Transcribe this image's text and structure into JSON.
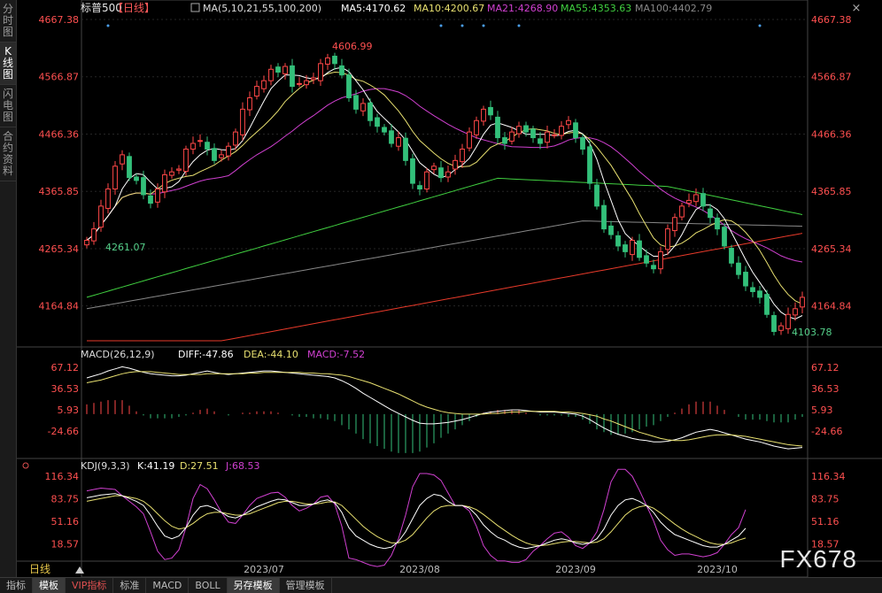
{
  "sidebar": {
    "tabs": [
      {
        "label": "分时图",
        "active": false
      },
      {
        "label": "K线图",
        "active": true
      },
      {
        "label": "闪电图",
        "active": false
      },
      {
        "label": "合约资料",
        "active": false
      }
    ]
  },
  "bottom_tabs": [
    {
      "label": "指标",
      "active": false,
      "red": false
    },
    {
      "label": "模板",
      "active": true,
      "red": false
    },
    {
      "label": "VIP指标",
      "active": false,
      "red": true
    },
    {
      "label": "标准",
      "active": false,
      "red": false
    },
    {
      "label": "MACD",
      "active": false,
      "red": false
    },
    {
      "label": "BOLL",
      "active": false,
      "red": false
    },
    {
      "label": "另存模板",
      "active": true,
      "red": false
    },
    {
      "label": "管理模板",
      "active": false,
      "red": false
    }
  ],
  "watermark": "FX678",
  "close_icon": "close-icon",
  "chart_data": {
    "type": "candlestick",
    "title": "标普500",
    "period_label": "【日线】",
    "period_selector": "日线",
    "legend": [
      {
        "text": "MA(5,10,21,55,100,200)",
        "color": "#dddddd"
      },
      {
        "text": "MA5:4170.62",
        "color": "#ffffff"
      },
      {
        "text": "MA10:4200.67",
        "color": "#e8e070"
      },
      {
        "text": "MA21:4268.90",
        "color": "#d040d0"
      },
      {
        "text": "MA55:4353.63",
        "color": "#40d040"
      },
      {
        "text": "MA100:4402.79",
        "color": "#888888"
      }
    ],
    "price_axis": {
      "ylim": [
        4103.78,
        4667.38
      ],
      "ticks": [
        4667.38,
        4566.87,
        4466.36,
        4365.85,
        4265.34,
        4164.84
      ]
    },
    "x_ticks": [
      {
        "label": "2023/07",
        "i": 25
      },
      {
        "label": "2023/08",
        "i": 47
      },
      {
        "label": "2023/09",
        "i": 69
      },
      {
        "label": "2023/10",
        "i": 89
      }
    ],
    "annotations": {
      "high": "4606.99",
      "low": "4103.78",
      "left_label": "4261.07"
    },
    "series_colors": {
      "up": "#ff4848",
      "down": "#33c07a",
      "ma5": "#ffffff",
      "ma10": "#e8e070",
      "ma21": "#d040d0",
      "ma55": "#40d040",
      "ma100": "#888888",
      "ma200": "#e83a2a"
    },
    "closes": [
      4280,
      4300,
      4340,
      4370,
      4410,
      4430,
      4390,
      4385,
      4360,
      4345,
      4370,
      4395,
      4400,
      4405,
      4440,
      4450,
      4455,
      4440,
      4420,
      4430,
      4445,
      4470,
      4510,
      4530,
      4550,
      4560,
      4580,
      4575,
      4585,
      4550,
      4555,
      4560,
      4565,
      4590,
      4600,
      4590,
      4570,
      4530,
      4510,
      4520,
      4490,
      4480,
      4470,
      4450,
      4460,
      4420,
      4380,
      4370,
      4400,
      4410,
      4390,
      4400,
      4420,
      4440,
      4470,
      4490,
      4510,
      4500,
      4460,
      4450,
      4470,
      4480,
      4470,
      4460,
      4450,
      4470,
      4465,
      4480,
      4490,
      4460,
      4440,
      4380,
      4340,
      4300,
      4290,
      4270,
      4260,
      4280,
      4250,
      4240,
      4230,
      4260,
      4300,
      4320,
      4340,
      4350,
      4360,
      4340,
      4320,
      4300,
      4270,
      4240,
      4220,
      4200,
      4190,
      4180,
      4150,
      4120,
      4130,
      4150,
      4160,
      4180
    ],
    "dots_x": [
      3,
      50,
      53,
      56,
      61,
      95,
      121
    ],
    "macd": {
      "title": "MACD(26,12,9)",
      "diff_label": "DIFF:-47.86",
      "dea_label": "DEA:-44.10",
      "macd_label": "MACD:-7.52",
      "ylim": [
        -60,
        80
      ],
      "ticks": [
        67.12,
        36.53,
        5.93,
        -24.66
      ],
      "diff": [
        52,
        55,
        58,
        62,
        65,
        68,
        66,
        63,
        60,
        58,
        57,
        56,
        55,
        55,
        56,
        58,
        60,
        62,
        60,
        58,
        57,
        58,
        59,
        60,
        61,
        62,
        62,
        61,
        60,
        59,
        58,
        57,
        56,
        55,
        54,
        52,
        48,
        43,
        37,
        30,
        24,
        18,
        12,
        6,
        1,
        -4,
        -9,
        -13,
        -14,
        -14,
        -13,
        -12,
        -10,
        -8,
        -5,
        -2,
        1,
        3,
        4,
        5,
        6,
        6,
        5,
        4,
        3,
        3,
        3,
        2,
        1,
        0,
        -3,
        -8,
        -14,
        -20,
        -25,
        -29,
        -32,
        -35,
        -37,
        -38,
        -40,
        -40,
        -39,
        -37,
        -34,
        -30,
        -26,
        -24,
        -22,
        -24,
        -27,
        -30,
        -33,
        -36,
        -38,
        -40,
        -43,
        -46,
        -48,
        -50,
        -49,
        -48
      ],
      "dea": [
        45,
        47,
        49,
        52,
        55,
        58,
        60,
        61,
        61,
        61,
        60,
        59,
        58,
        57,
        57,
        57,
        57,
        58,
        58,
        58,
        58,
        58,
        58,
        59,
        59,
        60,
        60,
        60,
        60,
        60,
        60,
        59,
        59,
        58,
        58,
        57,
        56,
        54,
        51,
        48,
        45,
        41,
        37,
        33,
        29,
        24,
        19,
        14,
        10,
        7,
        4,
        2,
        1,
        0,
        0,
        0,
        0,
        1,
        1,
        2,
        3,
        3,
        4,
        4,
        4,
        4,
        4,
        3,
        3,
        2,
        1,
        -1,
        -3,
        -7,
        -10,
        -14,
        -18,
        -22,
        -26,
        -29,
        -32,
        -35,
        -37,
        -38,
        -38,
        -37,
        -35,
        -33,
        -31,
        -30,
        -30,
        -30,
        -31,
        -32,
        -34,
        -36,
        -38,
        -40,
        -42,
        -44,
        -45,
        -46
      ]
    },
    "kdj": {
      "title": "KDJ(9,3,3)",
      "k_label": "K:41.19",
      "d_label": "D:27.51",
      "j_label": "J:68.53",
      "ylim": [
        -5,
        120
      ],
      "ticks": [
        116.34,
        83.75,
        51.16,
        18.57
      ],
      "k": [
        85,
        87,
        89,
        90,
        91,
        88,
        84,
        80,
        74,
        60,
        44,
        30,
        26,
        30,
        42,
        60,
        72,
        74,
        70,
        64,
        58,
        56,
        60,
        66,
        72,
        76,
        80,
        83,
        82,
        78,
        74,
        74,
        76,
        80,
        82,
        78,
        64,
        42,
        30,
        24,
        18,
        14,
        12,
        14,
        22,
        36,
        55,
        74,
        84,
        90,
        88,
        80,
        74,
        74,
        70,
        60,
        46,
        36,
        28,
        24,
        18,
        14,
        12,
        14,
        16,
        20,
        24,
        26,
        24,
        20,
        18,
        20,
        26,
        40,
        60,
        74,
        82,
        84,
        80,
        74,
        64,
        50,
        40,
        32,
        28,
        24,
        20,
        16,
        14,
        14,
        18,
        24,
        30,
        41
      ],
      "d": [
        80,
        82,
        84,
        86,
        88,
        88,
        86,
        84,
        80,
        72,
        62,
        52,
        44,
        40,
        42,
        48,
        56,
        62,
        64,
        64,
        62,
        60,
        60,
        62,
        66,
        70,
        74,
        78,
        80,
        80,
        78,
        76,
        76,
        77,
        79,
        79,
        74,
        64,
        54,
        44,
        36,
        29,
        24,
        20,
        20,
        24,
        32,
        44,
        56,
        66,
        72,
        74,
        74,
        74,
        72,
        68,
        61,
        53,
        45,
        38,
        31,
        25,
        20,
        17,
        16,
        17,
        19,
        21,
        22,
        22,
        21,
        20,
        21,
        26,
        36,
        48,
        60,
        68,
        72,
        74,
        70,
        63,
        55,
        47,
        40,
        34,
        29,
        24,
        20,
        18,
        18,
        20,
        24,
        27
      ],
      "j": [
        95,
        97,
        99,
        98,
        97,
        88,
        80,
        72,
        62,
        36,
        8,
        -4,
        -2,
        10,
        42,
        84,
        104,
        98,
        82,
        64,
        50,
        48,
        60,
        74,
        84,
        88,
        92,
        93,
        86,
        74,
        66,
        70,
        76,
        86,
        88,
        76,
        44,
        -2,
        -4,
        -8,
        -12,
        -14,
        -12,
        2,
        26,
        60,
        101,
        120,
        120,
        118,
        110,
        92,
        74,
        74,
        66,
        44,
        16,
        2,
        -6,
        -6,
        -8,
        -8,
        -4,
        8,
        16,
        26,
        34,
        36,
        28,
        16,
        12,
        20,
        36,
        68,
        108,
        126,
        126,
        116,
        96,
        74,
        52,
        24,
        10,
        2,
        4,
        4,
        2,
        0,
        2,
        6,
        18,
        32,
        42,
        68
      ]
    }
  }
}
